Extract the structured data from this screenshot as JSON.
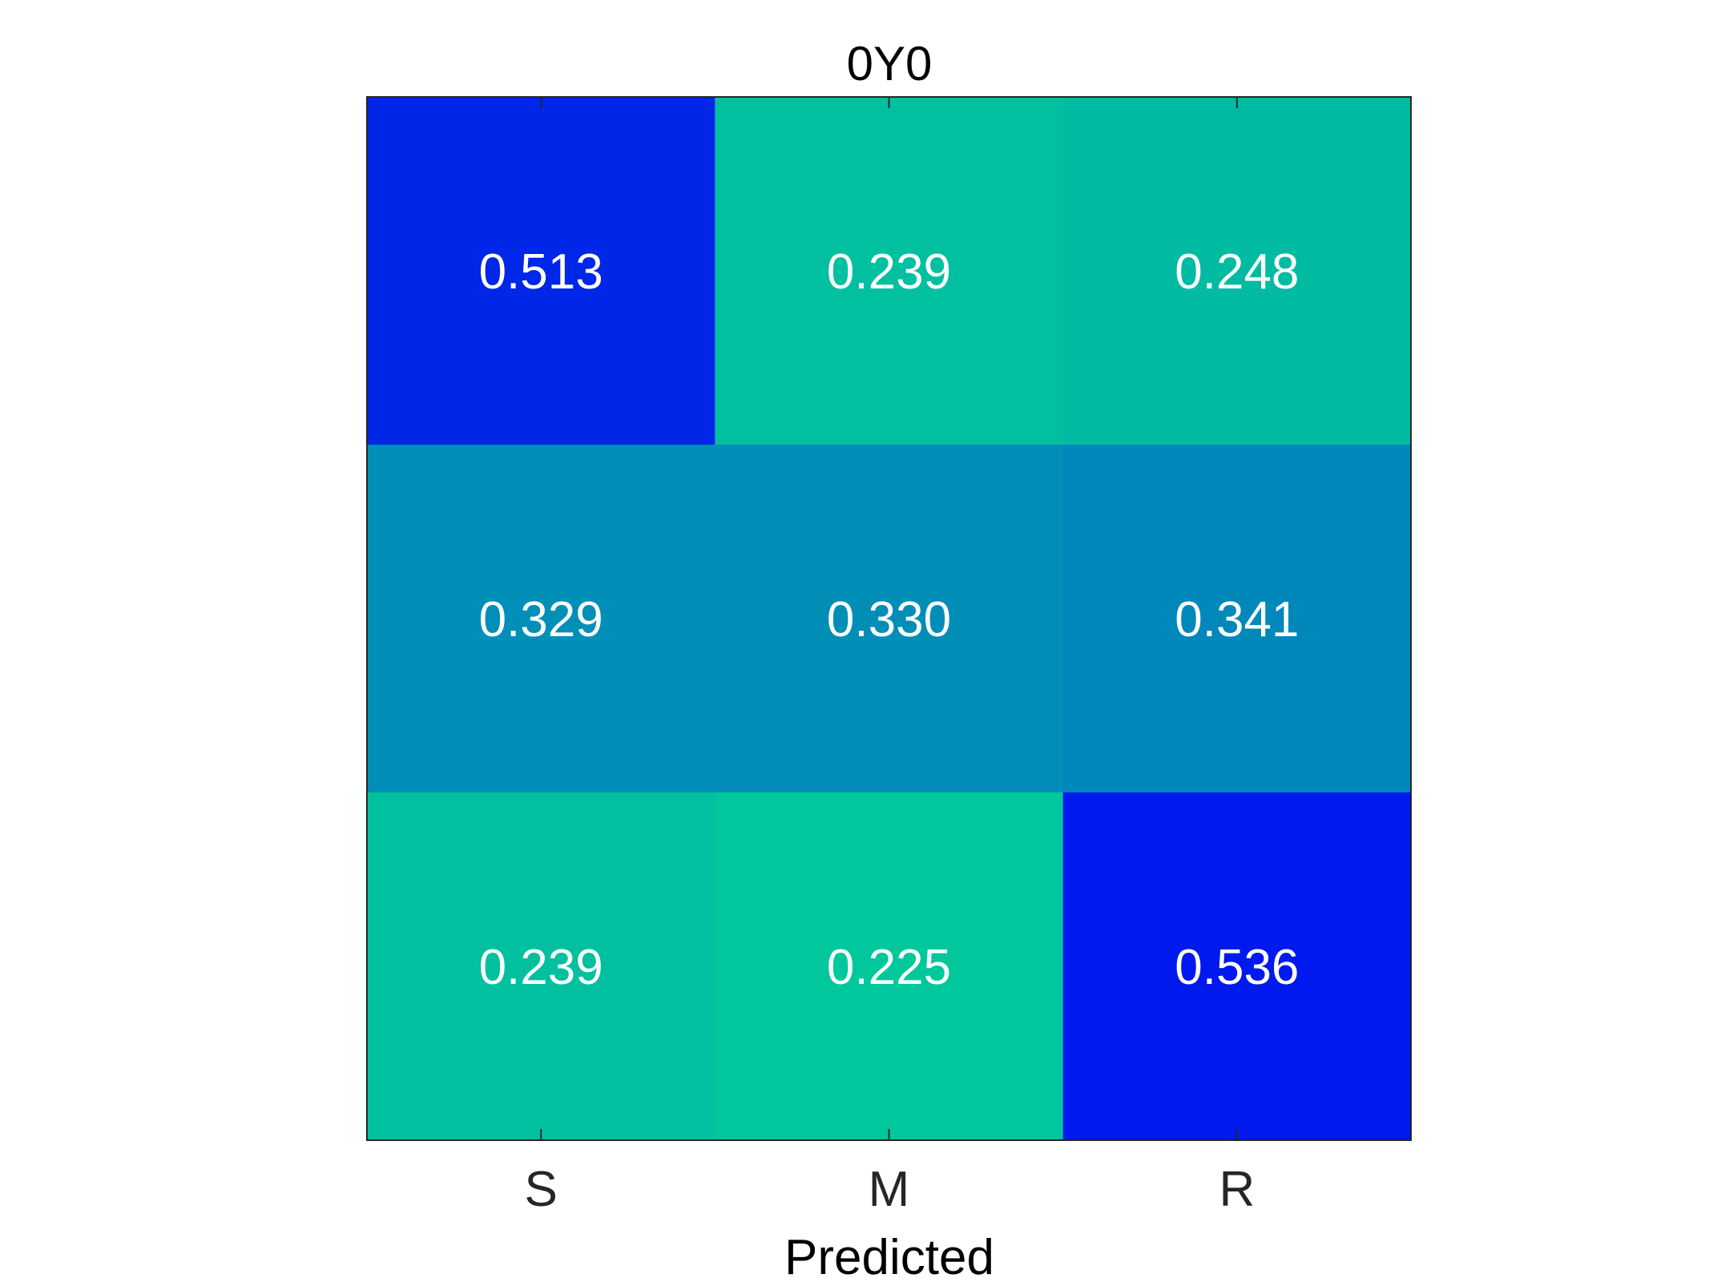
{
  "chart_data": {
    "type": "heatmap",
    "title": "0Y0",
    "xlabel": "Predicted",
    "ylabel": "",
    "x_categories": [
      "S",
      "M",
      "R"
    ],
    "y_categories": [],
    "values": [
      [
        0.513,
        0.239,
        0.248
      ],
      [
        0.329,
        0.33,
        0.341
      ],
      [
        0.239,
        0.225,
        0.536
      ]
    ],
    "value_labels": [
      [
        "0.513",
        "0.239",
        "0.248"
      ],
      [
        "0.329",
        "0.330",
        "0.341"
      ],
      [
        "0.239",
        "0.225",
        "0.536"
      ]
    ],
    "colormap": {
      "low": "#00c89c",
      "mid": "#008cb8",
      "high": "#0019ee"
    },
    "cell_text_color": "#ffffff",
    "grid": false,
    "legend": "none"
  }
}
